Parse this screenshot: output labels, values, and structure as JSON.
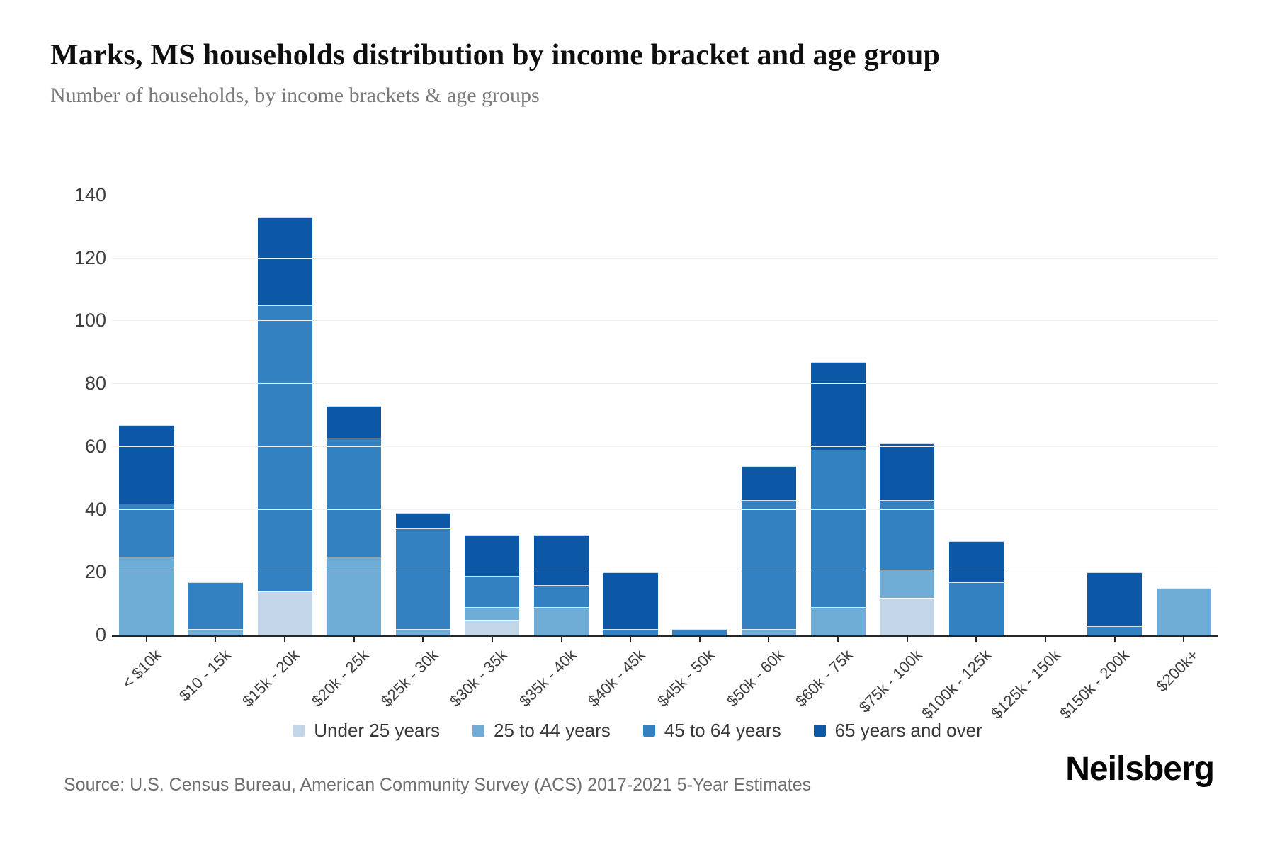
{
  "header": {
    "title": "Marks, MS households distribution by income bracket and age group",
    "subtitle": "Number of households, by income brackets & age groups"
  },
  "footer": {
    "source": "Source: U.S. Census Bureau, American Community Survey (ACS) 2017-2021 5-Year Estimates",
    "brand": "Neilsberg"
  },
  "colors": {
    "under_25": "#c2d6e8",
    "age_25_44": "#6fadd7",
    "age_45_64": "#3381c1",
    "age_65_over": "#0c57a6",
    "gridline": "#f0f0f0",
    "axis": "#262626"
  },
  "chart_data": {
    "type": "bar",
    "stacked": true,
    "title": "Marks, MS households distribution by income bracket and age group",
    "subtitle": "Number of households, by income brackets & age groups",
    "xlabel": "",
    "ylabel": "",
    "ylim": [
      0,
      140
    ],
    "yticks": [
      0,
      20,
      40,
      60,
      80,
      100,
      120,
      140
    ],
    "grid": "horizontal",
    "legend_position": "bottom",
    "categories": [
      "< $10k",
      "$10 - 15k",
      "$15k - 20k",
      "$20k - 25k",
      "$25k - 30k",
      "$30k - 35k",
      "$35k - 40k",
      "$40k - 45k",
      "$45k - 50k",
      "$50k - 60k",
      "$60k - 75k",
      "$75k - 100k",
      "$100k - 125k",
      "$125k - 150k",
      "$150k - 200k",
      "$200k+"
    ],
    "series": [
      {
        "name": "Under 25 years",
        "color": "#c2d6e8",
        "values": [
          0,
          0,
          14,
          0,
          0,
          5,
          0,
          0,
          0,
          0,
          0,
          12,
          0,
          0,
          0,
          0
        ]
      },
      {
        "name": "25 to 44 years",
        "color": "#6fadd7",
        "values": [
          25,
          2,
          0,
          25,
          2,
          4,
          9,
          0,
          0,
          2,
          9,
          9,
          0,
          0,
          0,
          15
        ]
      },
      {
        "name": "45 to 64 years",
        "color": "#3381c1",
        "values": [
          17,
          15,
          91,
          38,
          32,
          10,
          7,
          2,
          2,
          41,
          50,
          22,
          17,
          0,
          3,
          0
        ]
      },
      {
        "name": "65 years and over",
        "color": "#0c57a6",
        "values": [
          25,
          0,
          28,
          10,
          5,
          13,
          16,
          18,
          0,
          11,
          28,
          18,
          13,
          0,
          17,
          0
        ]
      }
    ],
    "totals": [
      67,
      17,
      133,
      73,
      39,
      32,
      32,
      20,
      2,
      54,
      87,
      61,
      30,
      0,
      20,
      15
    ]
  }
}
